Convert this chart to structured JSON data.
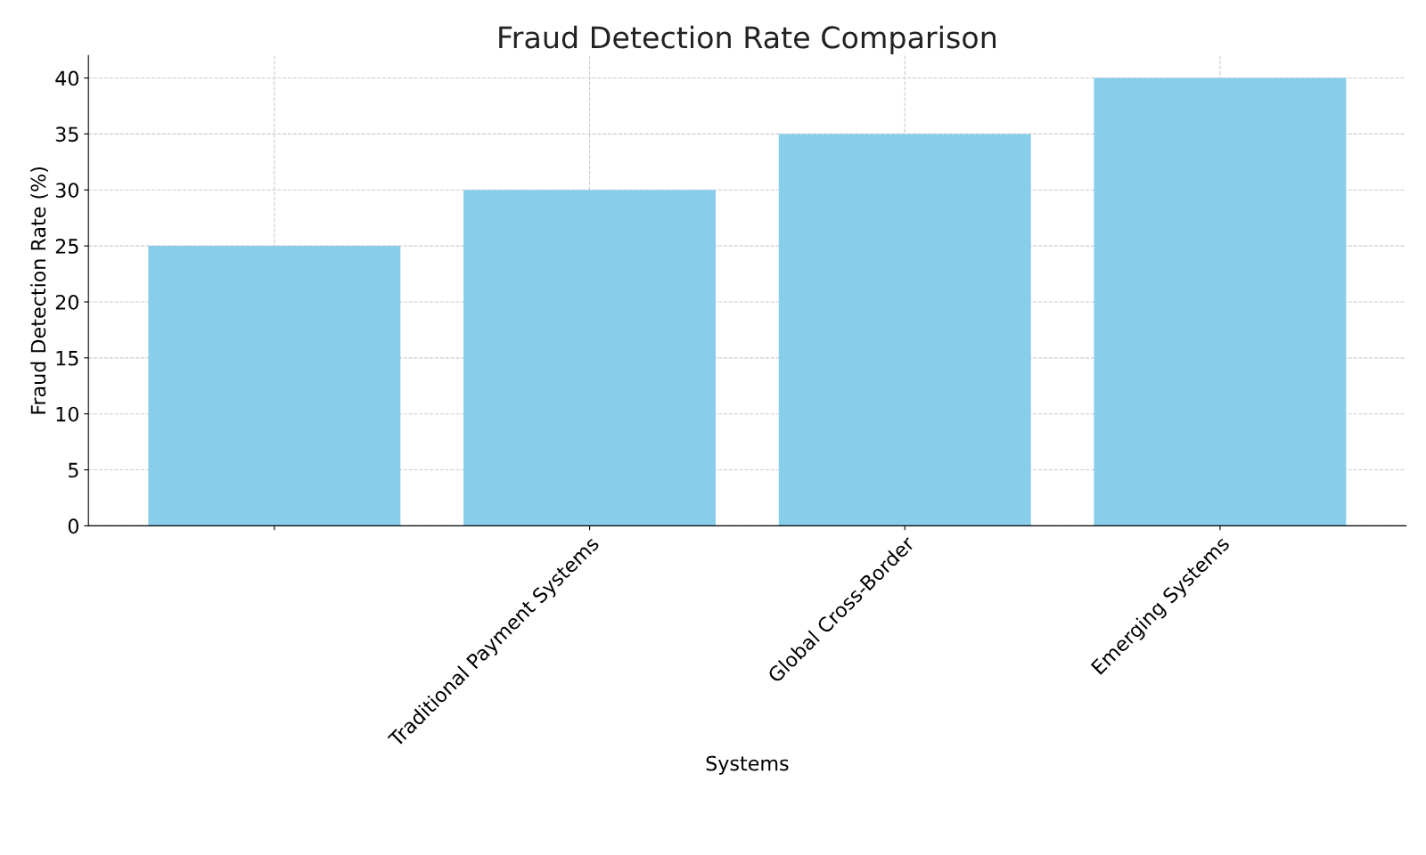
{
  "chart_data": {
    "type": "bar",
    "title": "Fraud Detection Rate Comparison",
    "xlabel": "Systems",
    "ylabel": "Fraud Detection Rate (%)",
    "categories": [
      null,
      "Traditional Payment Systems",
      "Global Cross-Border",
      "Emerging Systems"
    ],
    "values": [
      25,
      30,
      35,
      40
    ],
    "color": "#87ceeb",
    "ylim": [
      0,
      42
    ],
    "yticks": [
      0,
      5,
      10,
      15,
      20,
      25,
      30,
      35,
      40
    ],
    "grid": true
  }
}
